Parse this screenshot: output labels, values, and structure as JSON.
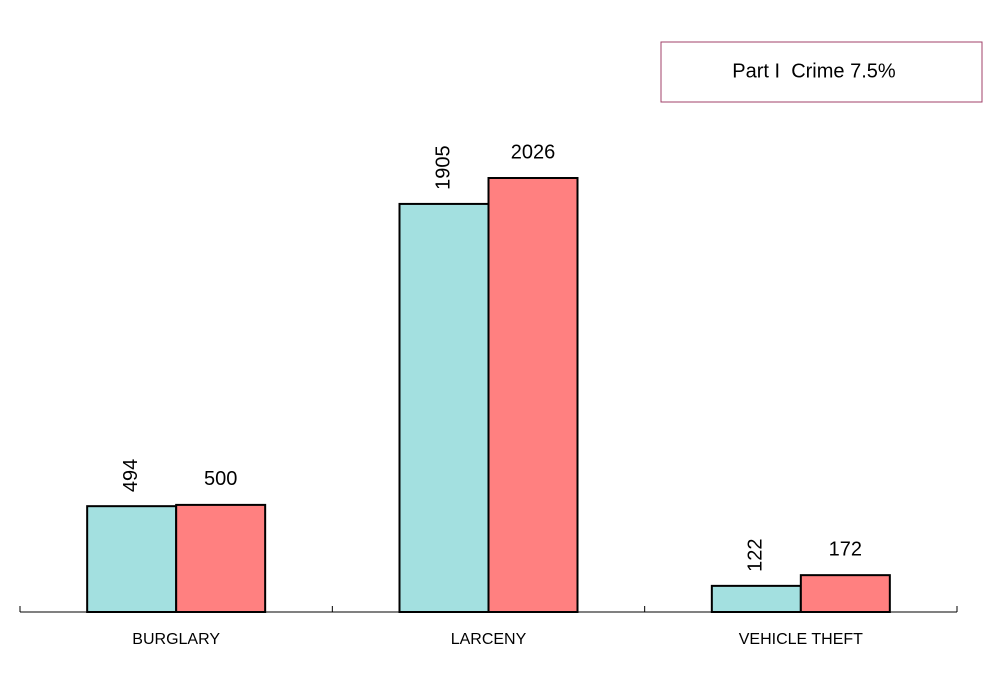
{
  "chart_data": {
    "type": "bar",
    "annotation": "Part I  Crime 7.5%",
    "categories": [
      "BURGLARY",
      "LARCENY",
      "VEHICLE THEFT"
    ],
    "series": [
      {
        "color": "#a3e0e0",
        "values": [
          494,
          1905,
          122
        ]
      },
      {
        "color": "#ff8080",
        "values": [
          500,
          2026,
          172
        ]
      }
    ]
  }
}
